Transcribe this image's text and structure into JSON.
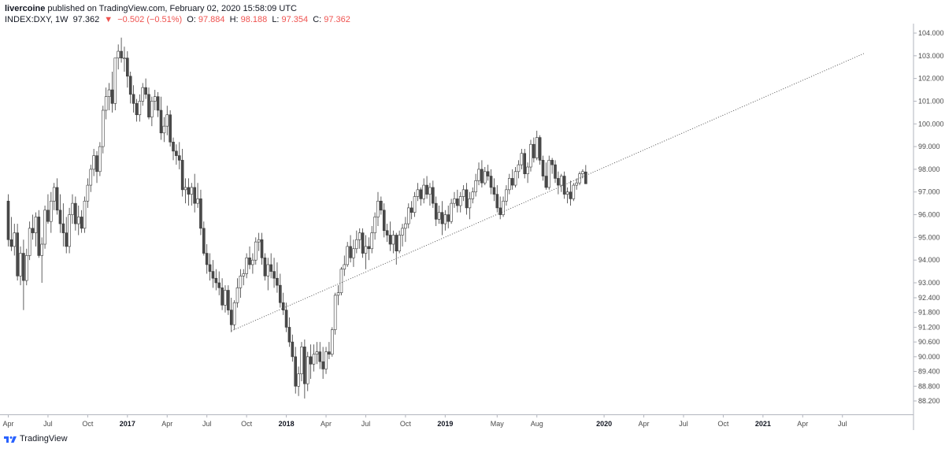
{
  "header": {
    "publisher_user": "livercoine",
    "publisher_text": "published on TradingView.com, February 02, 2020 15:58:09 UTC",
    "symbol": "INDEX:DXY, 1W",
    "last": "97.362",
    "change": "−0.502 (−0.51%)",
    "o_label": "O:",
    "o_value": "97.884",
    "h_label": "H:",
    "h_value": "98.188",
    "l_label": "L:",
    "l_value": "97.354",
    "c_label": "C:",
    "c_value": "97.362",
    "down_color": "#ef5350"
  },
  "footer": {
    "brand": "TradingView",
    "brand_icon": "tradingview-logo-icon"
  },
  "chart_data": {
    "type": "candlestick",
    "instrument": "INDEX:DXY",
    "interval": "1W",
    "y_ticks": [
      "104.000",
      "103.000",
      "102.000",
      "101.000",
      "100.000",
      "99.000",
      "98.000",
      "97.000",
      "96.000",
      "95.000",
      "94.000",
      "93.000",
      "92.400",
      "91.800",
      "91.200",
      "90.600",
      "90.000",
      "89.400",
      "88.800",
      "88.200"
    ],
    "x_ticks": [
      "Apr",
      "Jul",
      "Oct",
      "2017",
      "Apr",
      "Jul",
      "Oct",
      "2018",
      "Apr",
      "Jul",
      "Oct",
      "2019",
      "May",
      "Aug",
      "2020",
      "Apr",
      "Jul",
      "Oct",
      "2021",
      "Apr",
      "Jul"
    ],
    "x_ticks_bold": [
      false,
      false,
      false,
      true,
      false,
      false,
      false,
      true,
      false,
      false,
      false,
      true,
      false,
      false,
      true,
      false,
      false,
      false,
      true,
      false,
      false
    ],
    "x_tick_weeks": [
      0,
      13,
      26,
      39,
      52,
      65,
      78,
      91,
      104,
      117,
      130,
      143,
      160,
      173,
      195,
      208,
      221,
      234,
      247,
      260,
      273
    ],
    "trendline": {
      "from": {
        "week": 73,
        "value": 91.05
      },
      "to": {
        "week": 280,
        "value": 103.1
      },
      "style": "dotted"
    },
    "candles": [
      [
        96.6,
        96.9,
        94.6,
        94.9
      ],
      [
        94.9,
        95.9,
        94.4,
        94.6
      ],
      [
        94.6,
        95.6,
        94.2,
        95.2
      ],
      [
        95.2,
        95.6,
        93.1,
        93.3
      ],
      [
        93.3,
        94.6,
        92.9,
        94.3
      ],
      [
        94.3,
        94.9,
        91.9,
        93.1
      ],
      [
        93.1,
        94.5,
        92.9,
        94.2
      ],
      [
        94.2,
        95.7,
        94.0,
        95.4
      ],
      [
        95.4,
        96.0,
        94.9,
        95.2
      ],
      [
        95.2,
        96.1,
        94.6,
        95.9
      ],
      [
        95.9,
        96.2,
        94.1,
        94.2
      ],
      [
        94.2,
        95.0,
        93.0,
        94.7
      ],
      [
        94.7,
        96.4,
        94.5,
        96.2
      ],
      [
        96.2,
        96.9,
        95.6,
        95.7
      ],
      [
        95.7,
        97.0,
        95.2,
        96.6
      ],
      [
        96.6,
        97.4,
        96.2,
        97.2
      ],
      [
        97.2,
        97.6,
        96.0,
        96.2
      ],
      [
        96.2,
        96.9,
        95.2,
        95.6
      ],
      [
        95.6,
        96.5,
        94.6,
        95.2
      ],
      [
        95.2,
        95.9,
        94.3,
        94.6
      ],
      [
        94.6,
        96.3,
        94.3,
        96.0
      ],
      [
        96.0,
        96.9,
        95.6,
        96.5
      ],
      [
        96.5,
        96.8,
        95.3,
        95.6
      ],
      [
        95.6,
        96.4,
        95.1,
        95.9
      ],
      [
        95.9,
        96.2,
        95.2,
        95.4
      ],
      [
        95.4,
        96.8,
        95.2,
        96.6
      ],
      [
        96.6,
        97.6,
        96.3,
        97.3
      ],
      [
        97.3,
        98.2,
        97.0,
        98.0
      ],
      [
        98.0,
        98.9,
        97.7,
        98.6
      ],
      [
        98.6,
        98.8,
        97.4,
        97.9
      ],
      [
        97.9,
        99.2,
        97.7,
        99.0
      ],
      [
        99.0,
        100.8,
        98.7,
        100.6
      ],
      [
        100.6,
        101.6,
        100.2,
        101.2
      ],
      [
        101.2,
        101.8,
        100.6,
        101.5
      ],
      [
        101.5,
        102.3,
        100.5,
        100.9
      ],
      [
        100.9,
        102.9,
        100.6,
        102.9
      ],
      [
        102.9,
        103.5,
        102.4,
        103.2
      ],
      [
        103.2,
        103.8,
        102.7,
        102.9
      ],
      [
        102.9,
        103.4,
        102.3,
        102.9
      ],
      [
        102.9,
        103.2,
        101.6,
        102.1
      ],
      [
        102.1,
        102.3,
        100.9,
        101.3
      ],
      [
        101.3,
        101.7,
        100.5,
        100.9
      ],
      [
        100.9,
        101.1,
        100.1,
        100.4
      ],
      [
        100.4,
        101.3,
        100.1,
        101.0
      ],
      [
        101.0,
        101.8,
        100.8,
        101.6
      ],
      [
        101.6,
        102.0,
        101.1,
        101.3
      ],
      [
        101.3,
        101.6,
        100.2,
        100.3
      ],
      [
        100.3,
        101.2,
        99.9,
        101.0
      ],
      [
        101.0,
        101.5,
        100.6,
        101.2
      ],
      [
        101.2,
        101.4,
        100.3,
        100.6
      ],
      [
        100.6,
        101.2,
        99.3,
        99.6
      ],
      [
        99.6,
        100.3,
        99.2,
        99.9
      ],
      [
        99.9,
        100.8,
        99.5,
        100.4
      ],
      [
        100.4,
        100.6,
        99.0,
        99.2
      ],
      [
        99.2,
        99.4,
        98.4,
        98.8
      ],
      [
        98.8,
        99.1,
        98.2,
        98.6
      ],
      [
        98.6,
        99.2,
        98.0,
        98.4
      ],
      [
        98.4,
        98.9,
        96.8,
        97.1
      ],
      [
        97.1,
        97.6,
        96.5,
        97.2
      ],
      [
        97.2,
        97.6,
        96.4,
        96.9
      ],
      [
        96.9,
        97.4,
        96.4,
        97.2
      ],
      [
        97.2,
        97.8,
        96.1,
        96.5
      ],
      [
        96.5,
        97.4,
        96.3,
        96.7
      ],
      [
        96.7,
        97.1,
        95.1,
        95.4
      ],
      [
        95.4,
        95.7,
        94.2,
        94.3
      ],
      [
        94.3,
        94.7,
        93.4,
        93.8
      ],
      [
        93.8,
        94.3,
        93.1,
        93.5
      ],
      [
        93.5,
        94.0,
        92.8,
        93.2
      ],
      [
        93.2,
        93.6,
        92.7,
        93.0
      ],
      [
        93.0,
        93.5,
        92.5,
        92.8
      ],
      [
        92.8,
        93.2,
        91.9,
        92.1
      ],
      [
        92.1,
        92.9,
        91.8,
        92.7
      ],
      [
        92.7,
        92.9,
        91.7,
        91.9
      ],
      [
        91.9,
        92.4,
        91.0,
        91.3
      ],
      [
        91.3,
        92.3,
        91.1,
        92.2
      ],
      [
        92.2,
        93.2,
        92.0,
        92.8
      ],
      [
        92.8,
        93.6,
        92.4,
        93.3
      ],
      [
        93.3,
        93.6,
        92.9,
        93.4
      ],
      [
        93.4,
        94.3,
        93.2,
        94.1
      ],
      [
        94.1,
        94.6,
        93.6,
        93.8
      ],
      [
        93.8,
        94.3,
        93.4,
        94.0
      ],
      [
        94.0,
        95.0,
        93.8,
        94.8
      ],
      [
        94.8,
        95.2,
        94.4,
        94.9
      ],
      [
        94.9,
        95.2,
        93.8,
        94.1
      ],
      [
        94.1,
        94.3,
        93.1,
        93.3
      ],
      [
        93.3,
        94.1,
        92.7,
        93.8
      ],
      [
        93.8,
        94.3,
        93.2,
        93.5
      ],
      [
        93.5,
        94.1,
        92.8,
        93.2
      ],
      [
        93.2,
        93.9,
        92.6,
        92.9
      ],
      [
        92.9,
        93.4,
        92.0,
        92.2
      ],
      [
        92.2,
        92.6,
        91.7,
        91.9
      ],
      [
        91.9,
        92.2,
        91.0,
        91.2
      ],
      [
        91.2,
        91.6,
        90.4,
        90.6
      ],
      [
        90.6,
        90.9,
        89.8,
        90.0
      ],
      [
        90.0,
        90.4,
        88.5,
        88.8
      ],
      [
        88.8,
        89.6,
        88.4,
        89.3
      ],
      [
        89.3,
        90.6,
        89.0,
        90.4
      ],
      [
        90.4,
        90.7,
        88.3,
        88.9
      ],
      [
        88.9,
        90.2,
        88.6,
        90.0
      ],
      [
        90.0,
        90.5,
        89.1,
        89.7
      ],
      [
        89.7,
        90.5,
        89.4,
        90.1
      ],
      [
        90.1,
        90.6,
        89.7,
        90.2
      ],
      [
        90.2,
        90.6,
        89.5,
        89.8
      ],
      [
        89.8,
        90.4,
        89.1,
        89.5
      ],
      [
        89.5,
        90.4,
        89.3,
        90.2
      ],
      [
        90.2,
        90.6,
        89.9,
        90.1
      ],
      [
        90.1,
        91.2,
        90.0,
        91.1
      ],
      [
        91.1,
        92.6,
        90.9,
        92.5
      ],
      [
        92.5,
        92.9,
        92.1,
        92.6
      ],
      [
        92.6,
        93.7,
        92.5,
        93.6
      ],
      [
        93.6,
        94.2,
        93.3,
        93.8
      ],
      [
        93.8,
        94.8,
        93.7,
        94.6
      ],
      [
        94.6,
        95.1,
        93.9,
        94.1
      ],
      [
        94.1,
        94.9,
        93.7,
        94.5
      ],
      [
        94.5,
        95.3,
        94.3,
        94.9
      ],
      [
        94.9,
        95.4,
        94.5,
        95.2
      ],
      [
        95.2,
        95.4,
        94.1,
        94.3
      ],
      [
        94.3,
        95.1,
        93.6,
        94.6
      ],
      [
        94.6,
        95.0,
        94.0,
        94.5
      ],
      [
        94.5,
        95.5,
        94.3,
        95.2
      ],
      [
        95.2,
        96.1,
        94.9,
        95.9
      ],
      [
        95.9,
        97.0,
        95.5,
        96.6
      ],
      [
        96.6,
        96.8,
        96.0,
        96.2
      ],
      [
        96.2,
        96.5,
        95.0,
        95.3
      ],
      [
        95.3,
        95.6,
        94.8,
        95.1
      ],
      [
        95.1,
        95.7,
        94.4,
        94.7
      ],
      [
        94.7,
        95.3,
        94.3,
        95.1
      ],
      [
        95.1,
        95.2,
        93.8,
        94.4
      ],
      [
        94.4,
        95.3,
        94.3,
        95.1
      ],
      [
        95.1,
        95.6,
        94.6,
        95.4
      ],
      [
        95.4,
        95.9,
        94.8,
        95.6
      ],
      [
        95.6,
        96.5,
        95.4,
        96.3
      ],
      [
        96.3,
        96.6,
        95.8,
        96.1
      ],
      [
        96.1,
        97.0,
        95.9,
        96.8
      ],
      [
        96.8,
        97.4,
        96.6,
        97.1
      ],
      [
        97.1,
        97.2,
        96.4,
        96.7
      ],
      [
        96.7,
        97.6,
        96.5,
        97.3
      ],
      [
        97.3,
        97.7,
        96.7,
        96.9
      ],
      [
        96.9,
        97.4,
        96.4,
        97.2
      ],
      [
        97.2,
        97.5,
        96.3,
        96.5
      ],
      [
        96.5,
        96.8,
        95.5,
        95.8
      ],
      [
        95.8,
        96.4,
        95.6,
        96.1
      ],
      [
        96.1,
        96.6,
        95.1,
        95.6
      ],
      [
        95.6,
        96.2,
        95.3,
        96.0
      ],
      [
        96.0,
        96.4,
        95.4,
        95.7
      ],
      [
        95.7,
        96.7,
        95.6,
        96.5
      ],
      [
        96.5,
        97.0,
        96.3,
        96.7
      ],
      [
        96.7,
        97.1,
        96.1,
        96.4
      ],
      [
        96.4,
        97.0,
        96.1,
        96.8
      ],
      [
        96.8,
        97.3,
        96.6,
        97.1
      ],
      [
        97.1,
        97.4,
        96.0,
        96.3
      ],
      [
        96.3,
        97.0,
        95.8,
        96.7
      ],
      [
        96.7,
        97.2,
        96.5,
        97.0
      ],
      [
        97.0,
        97.8,
        96.8,
        97.5
      ],
      [
        97.5,
        98.3,
        97.3,
        98.0
      ],
      [
        98.0,
        98.4,
        97.2,
        97.4
      ],
      [
        97.4,
        98.1,
        97.3,
        97.9
      ],
      [
        97.9,
        98.2,
        97.5,
        97.7
      ],
      [
        97.7,
        98.0,
        96.9,
        97.2
      ],
      [
        97.2,
        97.6,
        96.6,
        96.9
      ],
      [
        96.9,
        97.3,
        96.1,
        96.3
      ],
      [
        96.3,
        96.8,
        95.8,
        96.0
      ],
      [
        96.0,
        96.8,
        95.9,
        96.6
      ],
      [
        96.6,
        97.3,
        96.4,
        97.1
      ],
      [
        97.1,
        97.8,
        96.9,
        97.6
      ],
      [
        97.6,
        98.0,
        97.1,
        97.3
      ],
      [
        97.3,
        98.1,
        97.2,
        97.9
      ],
      [
        97.9,
        98.4,
        97.6,
        98.2
      ],
      [
        98.2,
        98.9,
        98.0,
        98.7
      ],
      [
        98.7,
        98.9,
        97.6,
        97.8
      ],
      [
        97.8,
        98.3,
        97.4,
        98.1
      ],
      [
        98.1,
        99.3,
        97.9,
        99.1
      ],
      [
        99.1,
        99.4,
        98.3,
        98.5
      ],
      [
        98.5,
        99.7,
        98.4,
        99.4
      ],
      [
        99.4,
        99.5,
        98.2,
        98.4
      ],
      [
        98.4,
        98.6,
        97.5,
        97.7
      ],
      [
        97.7,
        98.3,
        97.1,
        97.2
      ],
      [
        97.2,
        98.6,
        97.1,
        98.4
      ],
      [
        98.4,
        98.5,
        97.8,
        98.2
      ],
      [
        98.2,
        98.4,
        97.4,
        97.6
      ],
      [
        97.6,
        97.9,
        96.9,
        97.3
      ],
      [
        97.3,
        97.8,
        97.0,
        97.7
      ],
      [
        97.7,
        97.9,
        96.7,
        96.9
      ],
      [
        96.9,
        97.2,
        96.5,
        97.0
      ],
      [
        97.0,
        97.5,
        96.4,
        96.7
      ],
      [
        96.7,
        97.4,
        96.6,
        97.3
      ],
      [
        97.3,
        97.6,
        97.1,
        97.4
      ],
      [
        97.4,
        97.9,
        97.3,
        97.8
      ],
      [
        97.8,
        98.0,
        97.6,
        97.9
      ],
      [
        97.884,
        98.188,
        97.354,
        97.362
      ]
    ]
  }
}
